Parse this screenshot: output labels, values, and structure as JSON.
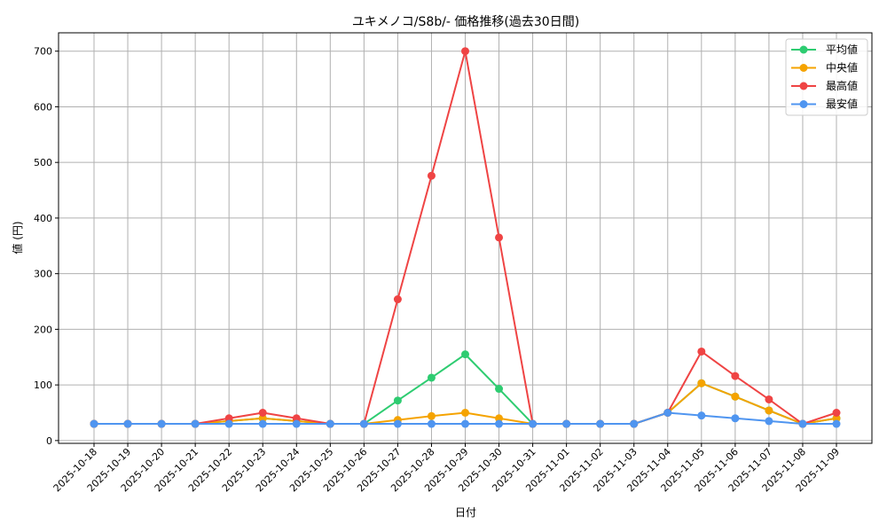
{
  "chart_data": {
    "type": "line",
    "title": "ユキメノコ/S8b/- 価格推移(過去30日間)",
    "xlabel": "日付",
    "ylabel": "値 (円)",
    "categories": [
      "2025-10-18",
      "2025-10-19",
      "2025-10-20",
      "2025-10-21",
      "2025-10-22",
      "2025-10-23",
      "2025-10-24",
      "2025-10-25",
      "2025-10-26",
      "2025-10-27",
      "2025-10-28",
      "2025-10-29",
      "2025-10-30",
      "2025-10-31",
      "2025-11-01",
      "2025-11-02",
      "2025-11-03",
      "2025-11-04",
      "2025-11-05",
      "2025-11-06",
      "2025-11-07",
      "2025-11-08",
      "2025-11-09"
    ],
    "yticks": [
      0,
      100,
      200,
      300,
      400,
      500,
      600,
      700
    ],
    "ylim": [
      -5,
      733
    ],
    "grid": true,
    "legend_position": "top-right",
    "series": [
      {
        "name": "平均値",
        "color": "#2ecc71",
        "values": [
          30,
          30,
          30,
          30,
          35,
          40,
          35,
          30,
          30,
          72,
          113,
          155,
          93,
          30,
          30,
          30,
          30,
          50,
          103,
          79,
          54,
          30,
          40
        ]
      },
      {
        "name": "中央値",
        "color": "#f5a300",
        "values": [
          30,
          30,
          30,
          30,
          35,
          40,
          35,
          30,
          30,
          37,
          44,
          50,
          40,
          30,
          30,
          30,
          30,
          50,
          103,
          79,
          54,
          30,
          40
        ]
      },
      {
        "name": "最高値",
        "color": "#ef4444",
        "values": [
          30,
          30,
          30,
          30,
          40,
          50,
          40,
          30,
          30,
          254,
          476,
          700,
          365,
          30,
          30,
          30,
          30,
          50,
          160,
          116,
          74,
          30,
          50
        ]
      },
      {
        "name": "最安値",
        "color": "#4f95f0",
        "values": [
          30,
          30,
          30,
          30,
          30,
          30,
          30,
          30,
          30,
          30,
          30,
          30,
          30,
          30,
          30,
          30,
          30,
          50,
          45,
          40,
          35,
          30,
          30
        ]
      }
    ]
  }
}
